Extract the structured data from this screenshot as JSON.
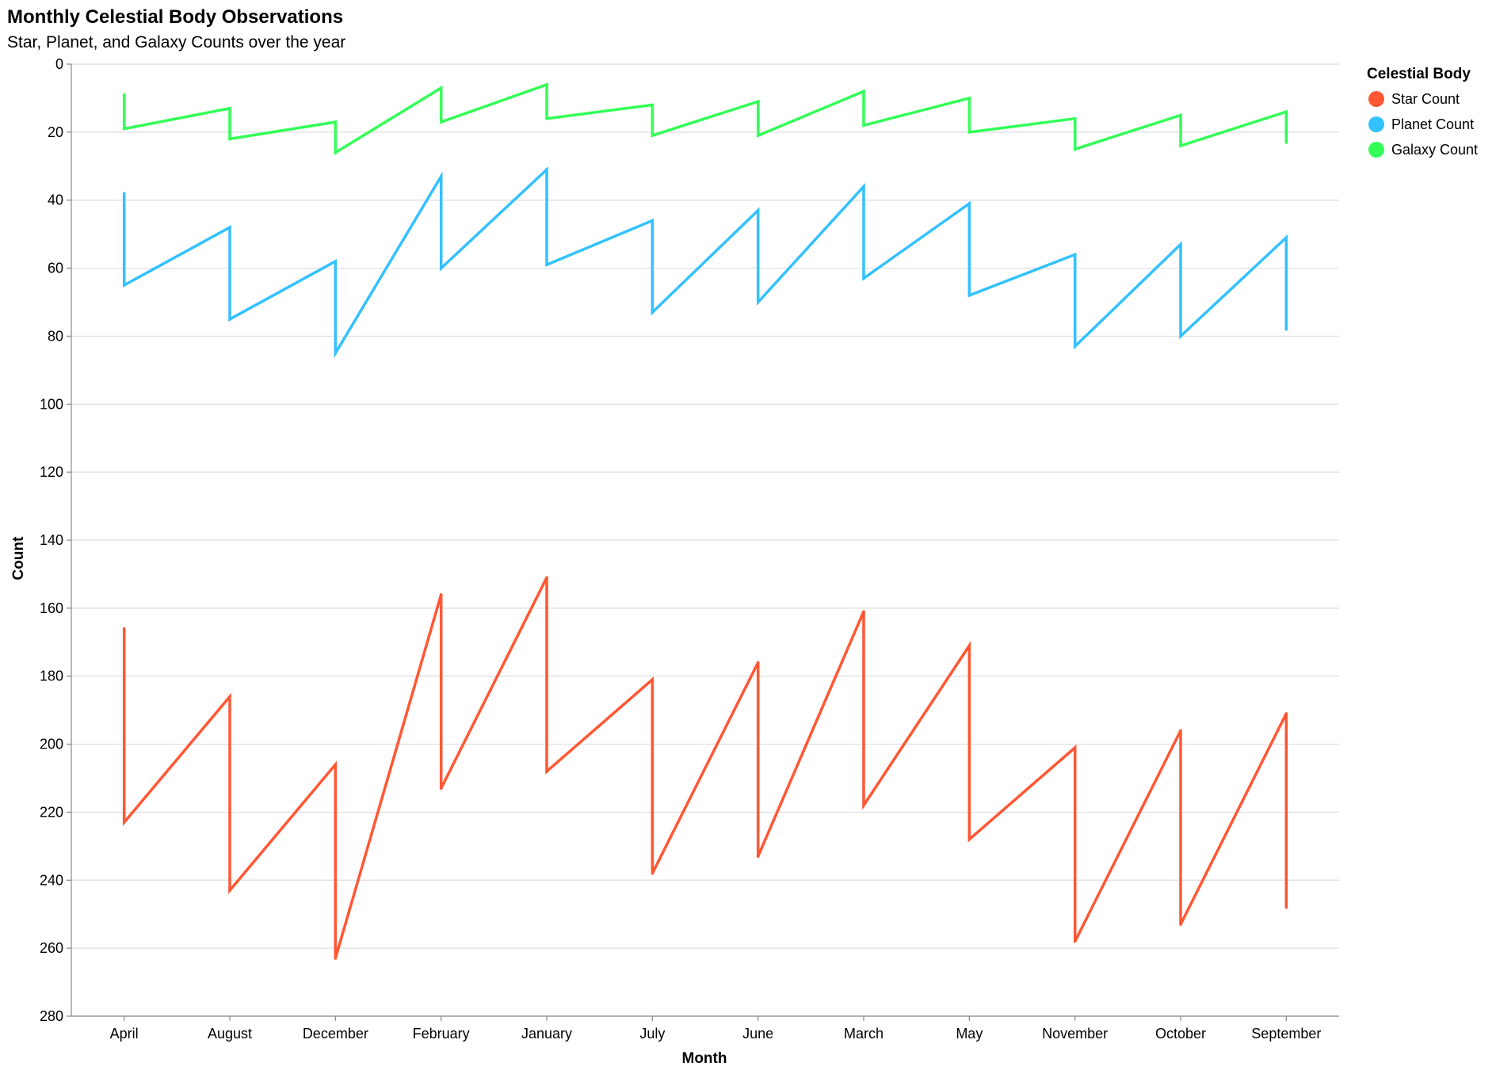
{
  "chart_data": {
    "type": "line",
    "title": "Monthly Celestial Body Observations",
    "subtitle": "Star, Planet, and Galaxy Counts over the year",
    "xlabel": "Month",
    "ylabel": "Count",
    "categories": [
      "April",
      "August",
      "December",
      "February",
      "January",
      "July",
      "June",
      "March",
      "May",
      "November",
      "October",
      "September"
    ],
    "ylim": [
      0,
      280
    ],
    "y_reversed": true,
    "yticks": [
      0,
      20,
      40,
      60,
      80,
      100,
      120,
      140,
      160,
      180,
      200,
      220,
      240,
      260,
      280
    ],
    "grid": true,
    "legend": {
      "title": "Celestial Body",
      "position": "right"
    },
    "series": [
      {
        "name": "Star Count",
        "color": "#ff5733",
        "low": [
          166,
          186,
          206,
          156,
          151,
          181,
          176,
          161,
          171,
          201,
          196,
          191
        ],
        "high": [
          223,
          243,
          263,
          213,
          208,
          238,
          233,
          218,
          228,
          258,
          253,
          248
        ]
      },
      {
        "name": "Planet Count",
        "color": "#33c1ff",
        "low": [
          38,
          48,
          58,
          33,
          31,
          46,
          43,
          36,
          41,
          56,
          53,
          51
        ],
        "high": [
          65,
          75,
          85,
          60,
          59,
          73,
          70,
          63,
          68,
          83,
          80,
          78
        ]
      },
      {
        "name": "Galaxy Count",
        "color": "#33ff57",
        "low": [
          9,
          13,
          17,
          7,
          6,
          12,
          11,
          8,
          10,
          16,
          15,
          14
        ],
        "high": [
          19,
          22,
          26,
          17,
          16,
          21,
          21,
          18,
          20,
          25,
          24,
          23
        ]
      }
    ]
  }
}
